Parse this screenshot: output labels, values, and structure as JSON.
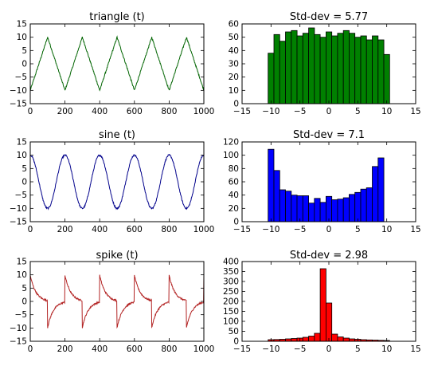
{
  "chart_data": [
    {
      "type": "line",
      "title": "triangle (t)",
      "xlabel": "",
      "ylabel": "",
      "xlim": [
        0,
        1000
      ],
      "ylim": [
        -15,
        15
      ],
      "xticks": [
        "0",
        "200",
        "400",
        "600",
        "800",
        "1000"
      ],
      "yticks": [
        "15",
        "10",
        "5",
        "0",
        "−5",
        "−10",
        "−15"
      ],
      "signal": "triangle",
      "amplitude": 10,
      "period": 200,
      "noise": 0.3,
      "color": "#006400",
      "grid": false
    },
    {
      "type": "bar",
      "title": "Std-dev = 5.77",
      "xlabel": "",
      "ylabel": "",
      "xlim": [
        -15,
        15
      ],
      "ylim": [
        0,
        60
      ],
      "xticks": [
        "−15",
        "−10",
        "−5",
        "0",
        "5",
        "10",
        "15"
      ],
      "yticks": [
        "60",
        "50",
        "40",
        "30",
        "20",
        "10",
        "0"
      ],
      "bin_start": -10.5,
      "bin_width": 1,
      "values": [
        38,
        52,
        47,
        54,
        55,
        51,
        53,
        57,
        52,
        50,
        54,
        51,
        53,
        55,
        53,
        50,
        51,
        48,
        51,
        48,
        37
      ],
      "color": "#008000",
      "grid": false
    },
    {
      "type": "line",
      "title": "sine (t)",
      "xlabel": "",
      "ylabel": "",
      "xlim": [
        0,
        1000
      ],
      "ylim": [
        -15,
        15
      ],
      "xticks": [
        "0",
        "200",
        "400",
        "600",
        "800",
        "1000"
      ],
      "yticks": [
        "15",
        "10",
        "5",
        "0",
        "−5",
        "−10",
        "−15"
      ],
      "signal": "sine",
      "amplitude": 10,
      "period": 200,
      "noise": 0.3,
      "color": "#00008b",
      "grid": false
    },
    {
      "type": "bar",
      "title": "Std-dev = 7.1",
      "xlabel": "",
      "ylabel": "",
      "xlim": [
        -15,
        15
      ],
      "ylim": [
        0,
        120
      ],
      "xticks": [
        "−15",
        "−10",
        "−5",
        "0",
        "5",
        "10",
        "15"
      ],
      "yticks": [
        "120",
        "100",
        "80",
        "60",
        "40",
        "20",
        "0"
      ],
      "bin_start": -10.5,
      "bin_width": 1,
      "values": [
        109,
        77,
        48,
        46,
        40,
        39,
        39,
        28,
        35,
        29,
        38,
        33,
        34,
        36,
        41,
        44,
        49,
        51,
        83,
        96
      ],
      "color": "#0000ff",
      "grid": false
    },
    {
      "type": "line",
      "title": "spike (t)",
      "xlabel": "",
      "ylabel": "",
      "xlim": [
        0,
        1000
      ],
      "ylim": [
        -15,
        15
      ],
      "xticks": [
        "0",
        "200",
        "400",
        "600",
        "800",
        "1000"
      ],
      "yticks": [
        "15",
        "10",
        "5",
        "0",
        "−5",
        "−10",
        "−15"
      ],
      "signal": "spike",
      "amplitude": 10,
      "period": 200,
      "spike_offset": 0,
      "noise": 0.3,
      "color": "#b22222",
      "grid": false
    },
    {
      "type": "bar",
      "title": "Std-dev = 2.98",
      "xlabel": "",
      "ylabel": "",
      "xlim": [
        -15,
        15
      ],
      "ylim": [
        0,
        400
      ],
      "xticks": [
        "−15",
        "−10",
        "−5",
        "0",
        "5",
        "10",
        "15"
      ],
      "yticks": [
        "400",
        "350",
        "300",
        "250",
        "200",
        "150",
        "100",
        "50",
        "0"
      ],
      "bin_start": -10.5,
      "bin_width": 1,
      "values": [
        8,
        9,
        10,
        12,
        14,
        16,
        20,
        26,
        40,
        364,
        192,
        36,
        22,
        16,
        12,
        10,
        8,
        7,
        6,
        5,
        4
      ],
      "color": "#ff0000",
      "grid": false
    }
  ]
}
